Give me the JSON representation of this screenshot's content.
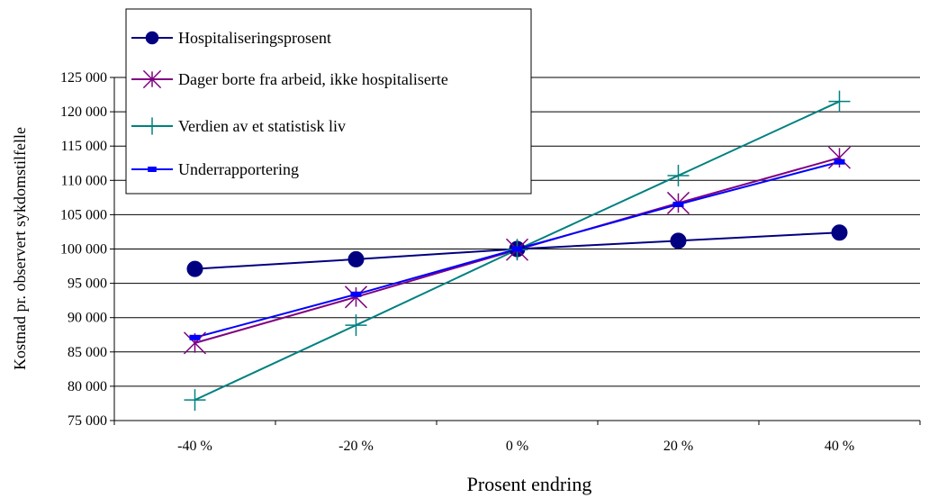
{
  "chart_data": {
    "type": "line",
    "title": "",
    "xlabel": "Prosent endring",
    "ylabel": "Kostnad pr. observert sykdomstilfelle",
    "categories": [
      "-40 %",
      "-20 %",
      "0 %",
      "20 %",
      "40 %"
    ],
    "ylim": [
      75000,
      125000
    ],
    "yticks": [
      75000,
      80000,
      85000,
      90000,
      95000,
      100000,
      105000,
      110000,
      115000,
      120000,
      125000
    ],
    "ytick_labels": [
      "75 000",
      "80 000",
      "85 000",
      "90 000",
      "95 000",
      "100 000",
      "105 000",
      "110 000",
      "115 000",
      "120 000",
      "125 000"
    ],
    "grid": "horizontal",
    "legend_position": "top-left",
    "series": [
      {
        "name": "Hospitaliseringsprosent",
        "values": [
          97100,
          98500,
          100000,
          101200,
          102400
        ],
        "color": "#000080",
        "marker": "circle"
      },
      {
        "name": "Dager borte fra arbeid, ikke hospitaliserte",
        "values": [
          86300,
          93000,
          99900,
          106700,
          113300
        ],
        "color": "#800080",
        "marker": "asterisk"
      },
      {
        "name": "Verdien av et statistisk liv",
        "values": [
          78000,
          88900,
          99900,
          110700,
          121500
        ],
        "color": "#008080",
        "marker": "plus"
      },
      {
        "name": "Underrapportering",
        "values": [
          87100,
          93400,
          100000,
          106500,
          112700
        ],
        "color": "#0000ff",
        "marker": "dash"
      }
    ]
  }
}
